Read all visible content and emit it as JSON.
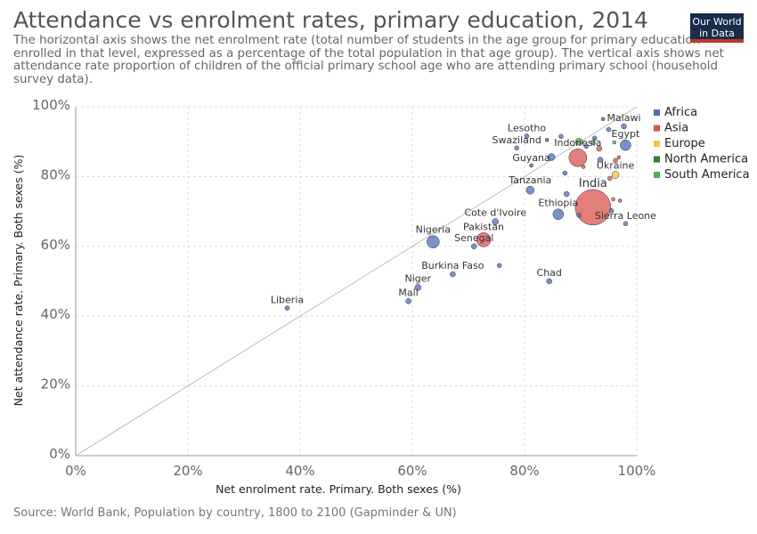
{
  "header": {
    "title": "Attendance vs enrolment rates, primary education, 2014",
    "subtitle": "The horizontal axis shows the net enrolment rate (total number of students in the age group for primary education enrolled in that level, expressed as a percentage of the total population in that age group). The vertical axis shows net attendance rate proportion of children of the official primary school age who are attending primary school (household survey data).",
    "logo_line1": "Our World",
    "logo_line2": "in Data"
  },
  "footer": {
    "source": "Source: World Bank, Population by country, 1800 to 2100 (Gapminder & UN)"
  },
  "chart_data": {
    "type": "scatter",
    "title": "Attendance vs enrolment rates, primary education, 2014",
    "xlabel": "Net enrolment rate. Primary. Both sexes (%)",
    "ylabel": "Net attendance rate. Primary. Both sexes (%)",
    "xlim": [
      0,
      100
    ],
    "ylim": [
      0,
      100
    ],
    "xticks": [
      "0%",
      "20%",
      "40%",
      "60%",
      "80%",
      "100%"
    ],
    "yticks": [
      "0%",
      "20%",
      "40%",
      "60%",
      "80%",
      "100%"
    ],
    "grid": true,
    "legend_position": "top-right",
    "colors": {
      "Africa": "#4c6fb8",
      "Asia": "#d9534f",
      "Europe": "#f5c542",
      "North America": "#2e7d32",
      "South America": "#4caf50"
    },
    "series": [
      {
        "name": "Africa",
        "points": [
          {
            "label": "Liberia",
            "x": 37.7,
            "y": 42.3,
            "r": 2.5
          },
          {
            "label": "Mali",
            "x": 59.3,
            "y": 44.3,
            "r": 3
          },
          {
            "label": "Niger",
            "x": 61.0,
            "y": 48.2,
            "r": 3.5
          },
          {
            "label": "Burkina Faso",
            "x": 67.2,
            "y": 52.0,
            "r": 3
          },
          {
            "label": "Nigeria",
            "x": 63.7,
            "y": 61.3,
            "r": 7
          },
          {
            "label": "Senegal",
            "x": 71.0,
            "y": 60.0,
            "r": 3
          },
          {
            "label": "Cote d'Ivoire",
            "x": 74.8,
            "y": 67.1,
            "r": 3.5
          },
          {
            "label": "Chad",
            "x": 84.4,
            "y": 50.0,
            "r": 3
          },
          {
            "label": "Tanzania",
            "x": 81.0,
            "y": 76.1,
            "r": 4.5
          },
          {
            "label": "Ethiopia",
            "x": 86.0,
            "y": 69.2,
            "r": 6
          },
          {
            "label": "Sierra Leone",
            "x": 98.0,
            "y": 66.5,
            "r": 2.5
          },
          {
            "label": "Lesotho",
            "x": 80.4,
            "y": 91.6,
            "r": 2.5
          },
          {
            "label": "Swaziland",
            "x": 78.6,
            "y": 88.2,
            "r": 2.5
          },
          {
            "label": "Malawi",
            "x": 97.7,
            "y": 94.4,
            "r": 3
          },
          {
            "label": "Egypt",
            "x": 98.0,
            "y": 89.0,
            "r": 6
          },
          {
            "label": "",
            "x": 75.5,
            "y": 54.5,
            "r": 2.5
          },
          {
            "label": "",
            "x": 84.8,
            "y": 85.6,
            "r": 4
          },
          {
            "label": "",
            "x": 87.5,
            "y": 75.0,
            "r": 3
          },
          {
            "label": "",
            "x": 87.2,
            "y": 81.0,
            "r": 2.5
          },
          {
            "label": "",
            "x": 89.7,
            "y": 68.9,
            "r": 2.5
          },
          {
            "label": "",
            "x": 93.5,
            "y": 84.8,
            "r": 3
          },
          {
            "label": "",
            "x": 95.5,
            "y": 70.2,
            "r": 2.5
          },
          {
            "label": "",
            "x": 91.0,
            "y": 88.7,
            "r": 2.5
          },
          {
            "label": "",
            "x": 92.5,
            "y": 91.0,
            "r": 2.5
          },
          {
            "label": "",
            "x": 86.5,
            "y": 91.5,
            "r": 2.5
          },
          {
            "label": "",
            "x": 95.0,
            "y": 93.5,
            "r": 2.5
          }
        ]
      },
      {
        "name": "Asia",
        "points": [
          {
            "label": "India",
            "x": 92.2,
            "y": 71.2,
            "r": 20
          },
          {
            "label": "Pakistan",
            "x": 72.7,
            "y": 61.9,
            "r": 8
          },
          {
            "label": "Indonesia",
            "x": 89.5,
            "y": 85.4,
            "r": 10
          },
          {
            "label": "",
            "x": 93.3,
            "y": 88.0,
            "r": 3
          },
          {
            "label": "",
            "x": 95.2,
            "y": 79.5,
            "r": 2.5
          },
          {
            "label": "",
            "x": 96.2,
            "y": 84.6,
            "r": 2.5
          },
          {
            "label": "",
            "x": 96.8,
            "y": 85.5,
            "r": 2
          },
          {
            "label": "",
            "x": 95.8,
            "y": 73.5,
            "r": 2
          },
          {
            "label": "",
            "x": 97.0,
            "y": 73.1,
            "r": 2
          },
          {
            "label": "",
            "x": 90.5,
            "y": 82.8,
            "r": 2
          }
        ]
      },
      {
        "name": "Europe",
        "points": [
          {
            "label": "Ukraine",
            "x": 96.2,
            "y": 80.5,
            "r": 4
          }
        ]
      },
      {
        "name": "North America",
        "points": [
          {
            "label": "Guyana",
            "x": 81.2,
            "y": 83.2,
            "r": 2
          },
          {
            "label": "",
            "x": 84.0,
            "y": 90.5,
            "r": 2
          },
          {
            "label": "",
            "x": 94.0,
            "y": 96.5,
            "r": 2
          }
        ]
      },
      {
        "name": "South America",
        "points": [
          {
            "label": "",
            "x": 89.7,
            "y": 90.0,
            "r": 4
          },
          {
            "label": "",
            "x": 92.2,
            "y": 89.7,
            "r": 2.5
          },
          {
            "label": "",
            "x": 96.0,
            "y": 89.8,
            "r": 2
          }
        ]
      }
    ]
  }
}
